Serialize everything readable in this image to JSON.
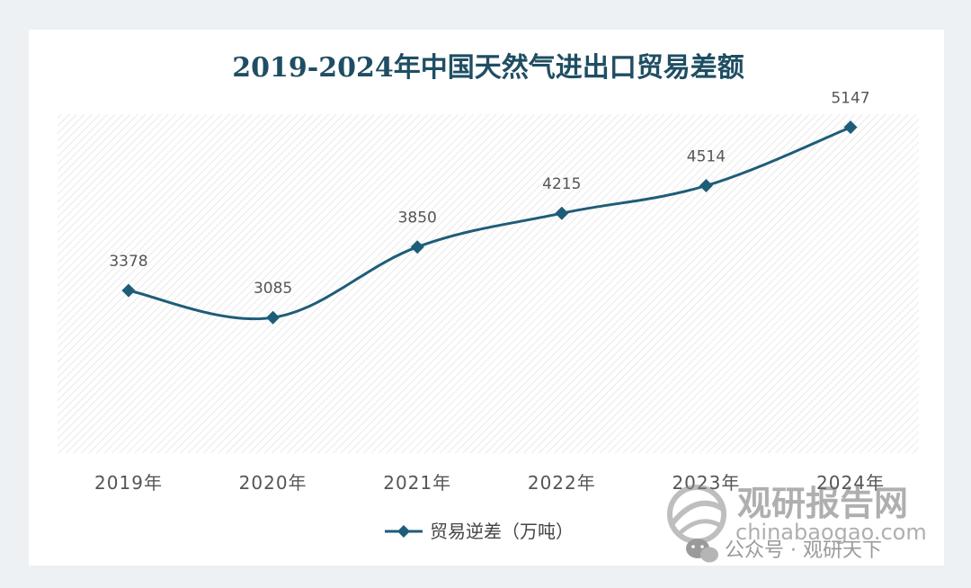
{
  "chart_data": {
    "type": "line",
    "title": "2019-2024年中国天然气进出口贸易差额",
    "categories": [
      "2019年",
      "2020年",
      "2021年",
      "2022年",
      "2023年",
      "2024年"
    ],
    "series": [
      {
        "name": "贸易逆差（万吨）",
        "values": [
          3378,
          3085,
          3850,
          4215,
          4514,
          5147
        ],
        "color": "#1e5d78"
      }
    ],
    "data_labels": [
      "3378",
      "3085",
      "3850",
      "4215",
      "4514",
      "5147"
    ],
    "ylim": [
      0,
      6000
    ],
    "grid": false,
    "legend_position": "bottom",
    "plot_background": "hatched-gray"
  },
  "watermark": {
    "brand": "观研报告网",
    "url": "chinabaogao.com",
    "wechat": "公众号 · 观研天下"
  }
}
